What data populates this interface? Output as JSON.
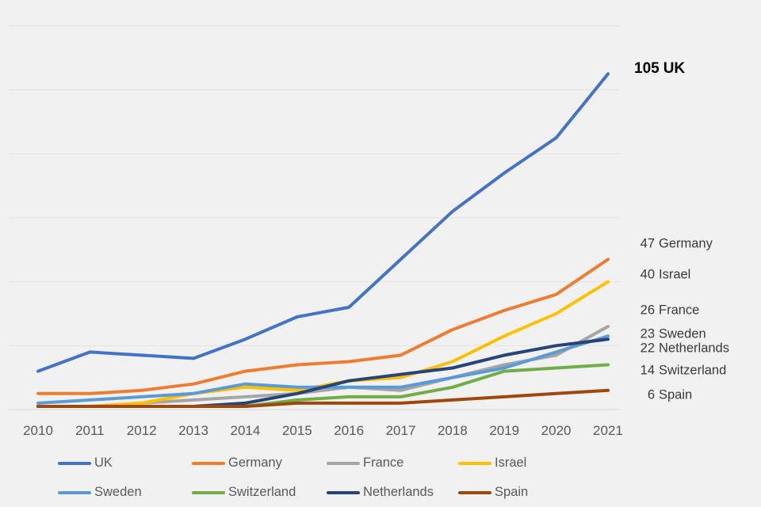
{
  "chart_data": {
    "type": "line",
    "title": "",
    "x": [
      "2010",
      "2011",
      "2012",
      "2013",
      "2014",
      "2015",
      "2016",
      "2017",
      "2018",
      "2019",
      "2020",
      "2021"
    ],
    "ylim": [
      0,
      120
    ],
    "grid_step": 20,
    "grid": true,
    "y_axis_labels_visible": false,
    "legend_position": "bottom",
    "colors": {
      "background": "#f1f1f2",
      "gridline": "#e3e3e4",
      "axis_line": "#d9d9da",
      "x_label": "#595959",
      "end_label": "#3a3a3a",
      "emphasis_label": "#000000"
    },
    "series": [
      {
        "name": "UK",
        "color": "#4472C4",
        "values": [
          12,
          18,
          17,
          16,
          22,
          29,
          32,
          47,
          62,
          74,
          85,
          105
        ],
        "end_label": "105 UK",
        "emphasis": true
      },
      {
        "name": "Germany",
        "color": "#ED7D31",
        "values": [
          5,
          5,
          6,
          8,
          12,
          14,
          15,
          17,
          25,
          31,
          36,
          47
        ],
        "end_label": "47 Germany",
        "emphasis": false
      },
      {
        "name": "France",
        "color": "#A5A5A5",
        "values": [
          1,
          1,
          2,
          3,
          4,
          5,
          7,
          6,
          10,
          14,
          17,
          26
        ],
        "end_label": "26 France",
        "emphasis": false
      },
      {
        "name": "Israel",
        "color": "#FFC000",
        "values": [
          1,
          1,
          2,
          5,
          7,
          6,
          9,
          10,
          15,
          23,
          30,
          40
        ],
        "end_label": "40 Israel",
        "emphasis": false
      },
      {
        "name": "Sweden",
        "color": "#5B9BD5",
        "values": [
          2,
          3,
          4,
          5,
          8,
          7,
          7,
          7,
          10,
          13,
          18,
          23
        ],
        "end_label": "23 Sweden",
        "emphasis": false
      },
      {
        "name": "Switzerland",
        "color": "#70AD47",
        "values": [
          1,
          1,
          1,
          1,
          1,
          3,
          4,
          4,
          7,
          12,
          13,
          14
        ],
        "end_label": "14 Switzerland",
        "emphasis": false
      },
      {
        "name": "Netherlands",
        "color": "#264478",
        "values": [
          1,
          1,
          1,
          1,
          2,
          5,
          9,
          11,
          13,
          17,
          20,
          22
        ],
        "end_label": "22 Netherlands",
        "emphasis": false
      },
      {
        "name": "Spain",
        "color": "#9E480E",
        "values": [
          1,
          1,
          1,
          1,
          1,
          2,
          2,
          2,
          3,
          4,
          5,
          6
        ],
        "end_label": "6 Spain",
        "emphasis": false
      }
    ]
  }
}
